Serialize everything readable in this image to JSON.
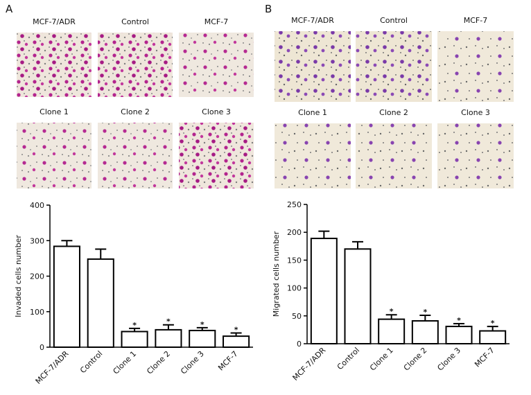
{
  "panels": [
    {
      "label": "A",
      "images": [
        "MCF-7/ADR",
        "Control",
        "MCF-7",
        "Clone 1",
        "Clone 2",
        "Clone 3"
      ]
    },
    {
      "label": "B",
      "images": [
        "MCF-7/ADR",
        "Control",
        "MCF-7",
        "Clone 1",
        "Clone 2",
        "Clone 3"
      ]
    }
  ],
  "chart_data": [
    {
      "type": "bar",
      "y_label": "Invaded cells number",
      "categories": [
        "MCF-7/ADR",
        "Control",
        "Clone 1",
        "Clone 2",
        "Clone 3",
        "MCF-7"
      ],
      "values": [
        284,
        248,
        44,
        49,
        47,
        31
      ],
      "errors": [
        16,
        28,
        9,
        14,
        8,
        9
      ],
      "annotations": [
        null,
        null,
        "*",
        "*",
        "*",
        "*"
      ],
      "color": "#ffffff",
      "ylim": [
        0,
        400
      ],
      "yticks": [
        0,
        100,
        200,
        300,
        400
      ]
    },
    {
      "type": "bar",
      "y_label": "Migrated cells number",
      "categories": [
        "MCF-7/ADR",
        "Control",
        "Clone 1",
        "Clone 2",
        "Clone 3",
        "MCF-7"
      ],
      "values": [
        189,
        170,
        44,
        41,
        31,
        23
      ],
      "errors": [
        13,
        13,
        8,
        10,
        5,
        8
      ],
      "annotations": [
        null,
        null,
        "*",
        "*",
        "*",
        "*"
      ],
      "color": "#ffffff",
      "ylim": [
        0,
        250
      ],
      "yticks": [
        0,
        50,
        100,
        150,
        200,
        250
      ]
    }
  ]
}
